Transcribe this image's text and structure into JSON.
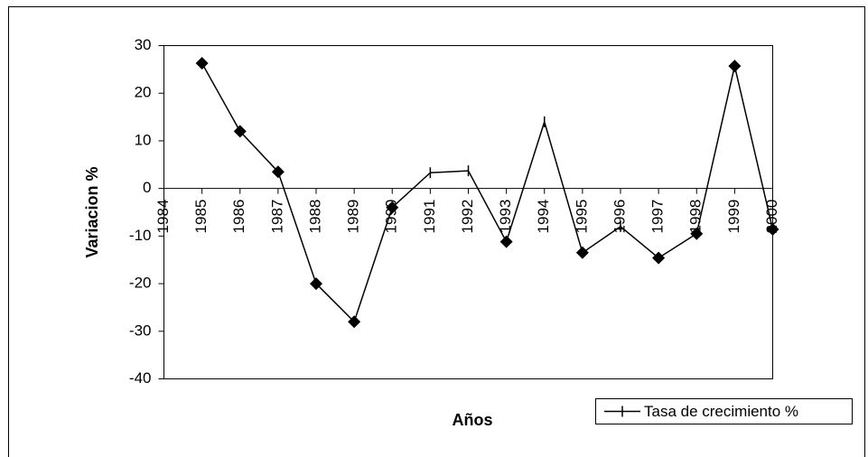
{
  "chart_data": {
    "type": "line",
    "xlabel": "Años",
    "ylabel": "Variacion %",
    "categories": [
      "1984",
      "1985",
      "1986",
      "1987",
      "1988",
      "1989",
      "1990",
      "1991",
      "1992",
      "1993",
      "1994",
      "1995",
      "1996",
      "1997",
      "1998",
      "1999",
      "2000"
    ],
    "series": [
      {
        "name": "Tasa de crecimiento %",
        "color": "#000000",
        "values": [
          null,
          26.3,
          12,
          3.5,
          -20,
          -28,
          -4,
          3.3,
          3.7,
          -11.2,
          14,
          -13.5,
          -8,
          -14.6,
          -9.5,
          25.7,
          -8.6
        ],
        "markers": [
          "tick",
          "diamond",
          "diamond",
          "diamond",
          "diamond",
          "diamond",
          "diamond",
          "tick",
          "tick",
          "diamond",
          "tick",
          "diamond",
          "tick",
          "diamond",
          "diamond",
          "diamond",
          "diamond"
        ]
      }
    ],
    "ylim": [
      -40,
      30
    ],
    "yticks": [
      -40,
      -30,
      -20,
      -10,
      0,
      10,
      20,
      30
    ],
    "legend": "bottom-right"
  }
}
